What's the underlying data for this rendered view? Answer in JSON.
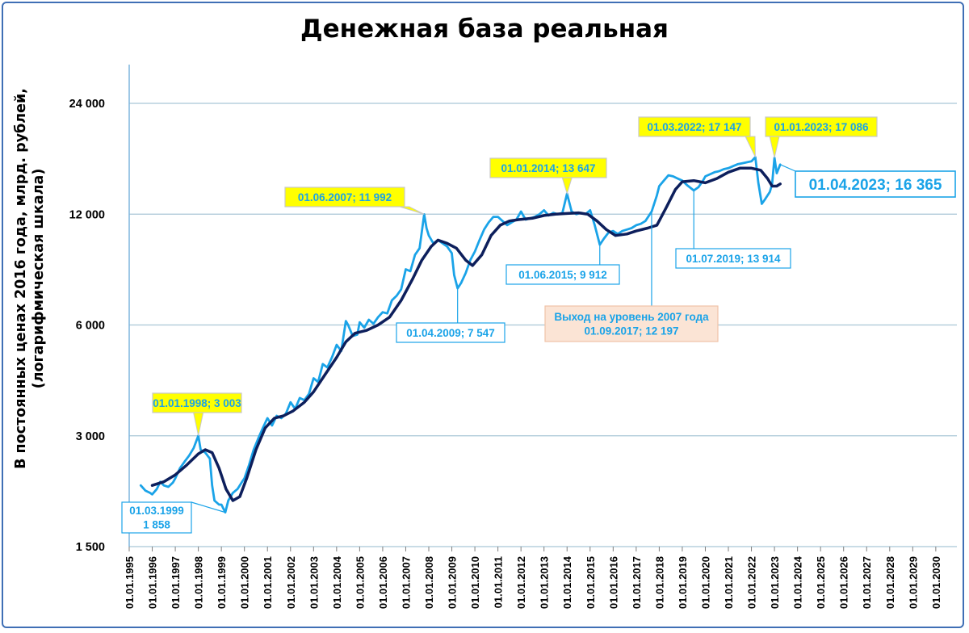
{
  "chart_data": {
    "type": "line",
    "title": "Денежная база реальная",
    "ylabel_lines": [
      "В постоянных ценах 2016 года, млрд. рублей,",
      "(логарифмическая шкала)"
    ],
    "y_scale": "log",
    "ylim": [
      1500,
      24000
    ],
    "y_ticks": [
      {
        "value": 1500,
        "label": "1 500"
      },
      {
        "value": 3000,
        "label": "3 000"
      },
      {
        "value": 6000,
        "label": "6 000"
      },
      {
        "value": 12000,
        "label": "12 000"
      },
      {
        "value": 24000,
        "label": "24 000"
      }
    ],
    "x_ticks": [
      "01.01.1995",
      "01.01.1996",
      "01.01.1997",
      "01.01.1998",
      "01.01.1999",
      "01.01.2000",
      "01.01.2001",
      "01.01.2002",
      "01.01.2003",
      "01.01.2004",
      "01.01.2005",
      "01.01.2006",
      "01.01.2007",
      "01.01.2008",
      "01.01.2009",
      "01.01.2010",
      "01.01.2011",
      "01.01.2012",
      "01.01.2013",
      "01.01.2014",
      "01.01.2015",
      "01.01.2016",
      "01.01.2017",
      "01.01.2018",
      "01.01.2019",
      "01.01.2020",
      "01.01.2021",
      "01.01.2022",
      "01.01.2023",
      "01.01.2024",
      "01.01.2025",
      "01.01.2026",
      "01.01.2027",
      "01.01.2028",
      "01.01.2029",
      "01.01.2030"
    ],
    "xlim": [
      1995.0,
      2030.0
    ],
    "grid": "horizontal",
    "colors": {
      "monthly": "#1aa3e8",
      "trend": "#0d1f5c",
      "label_yellow": "#ffff00",
      "label_peach": "#fbe4d5",
      "label_text": "#1aa3e8"
    },
    "series": [
      {
        "style": "monthly",
        "points": [
          [
            1995.5,
            2200
          ],
          [
            1995.7,
            2130
          ],
          [
            1995.9,
            2100
          ],
          [
            1996.0,
            2080
          ],
          [
            1996.2,
            2150
          ],
          [
            1996.35,
            2250
          ],
          [
            1996.5,
            2200
          ],
          [
            1996.7,
            2180
          ],
          [
            1996.9,
            2240
          ],
          [
            1997.0,
            2300
          ],
          [
            1997.2,
            2450
          ],
          [
            1997.4,
            2550
          ],
          [
            1997.6,
            2650
          ],
          [
            1997.8,
            2780
          ],
          [
            1998.0,
            3003
          ],
          [
            1998.1,
            2750
          ],
          [
            1998.3,
            2700
          ],
          [
            1998.5,
            2600
          ],
          [
            1998.6,
            2200
          ],
          [
            1998.7,
            2000
          ],
          [
            1998.9,
            1950
          ],
          [
            1999.0,
            1950
          ],
          [
            1999.17,
            1858
          ],
          [
            1999.3,
            2000
          ],
          [
            1999.5,
            2100
          ],
          [
            1999.7,
            2150
          ],
          [
            1999.9,
            2250
          ],
          [
            2000.0,
            2300
          ],
          [
            2000.2,
            2500
          ],
          [
            2000.4,
            2750
          ],
          [
            2000.6,
            2950
          ],
          [
            2000.8,
            3150
          ],
          [
            2001.0,
            3350
          ],
          [
            2001.2,
            3200
          ],
          [
            2001.4,
            3400
          ],
          [
            2001.6,
            3350
          ],
          [
            2001.8,
            3450
          ],
          [
            2002.0,
            3700
          ],
          [
            2002.2,
            3550
          ],
          [
            2002.4,
            3800
          ],
          [
            2002.6,
            3750
          ],
          [
            2002.8,
            3900
          ],
          [
            2003.0,
            4300
          ],
          [
            2003.2,
            4200
          ],
          [
            2003.4,
            4700
          ],
          [
            2003.6,
            4600
          ],
          [
            2003.8,
            4900
          ],
          [
            2004.0,
            5300
          ],
          [
            2004.2,
            5100
          ],
          [
            2004.4,
            6150
          ],
          [
            2004.5,
            6000
          ],
          [
            2004.7,
            5600
          ],
          [
            2004.9,
            5650
          ],
          [
            2005.0,
            6100
          ],
          [
            2005.2,
            5900
          ],
          [
            2005.4,
            6200
          ],
          [
            2005.6,
            6050
          ],
          [
            2005.8,
            6300
          ],
          [
            2006.0,
            6500
          ],
          [
            2006.2,
            6450
          ],
          [
            2006.4,
            7000
          ],
          [
            2006.6,
            7200
          ],
          [
            2006.8,
            7500
          ],
          [
            2007.0,
            8500
          ],
          [
            2007.2,
            8400
          ],
          [
            2007.4,
            9300
          ],
          [
            2007.6,
            9700
          ],
          [
            2007.8,
            11992
          ],
          [
            2007.9,
            11000
          ],
          [
            2008.0,
            10500
          ],
          [
            2008.2,
            10000
          ],
          [
            2008.4,
            10200
          ],
          [
            2008.6,
            10000
          ],
          [
            2008.8,
            9800
          ],
          [
            2009.0,
            9400
          ],
          [
            2009.1,
            8200
          ],
          [
            2009.25,
            7547
          ],
          [
            2009.4,
            7800
          ],
          [
            2009.6,
            8300
          ],
          [
            2009.8,
            9000
          ],
          [
            2010.0,
            9500
          ],
          [
            2010.2,
            10200
          ],
          [
            2010.4,
            10900
          ],
          [
            2010.6,
            11400
          ],
          [
            2010.8,
            11800
          ],
          [
            2011.0,
            11800
          ],
          [
            2011.2,
            11500
          ],
          [
            2011.4,
            11200
          ],
          [
            2011.6,
            11400
          ],
          [
            2011.8,
            11600
          ],
          [
            2012.0,
            12200
          ],
          [
            2012.2,
            11600
          ],
          [
            2012.4,
            11700
          ],
          [
            2012.6,
            11800
          ],
          [
            2012.8,
            12000
          ],
          [
            2013.0,
            12300
          ],
          [
            2013.2,
            11900
          ],
          [
            2013.4,
            12100
          ],
          [
            2013.6,
            12000
          ],
          [
            2013.8,
            12100
          ],
          [
            2014.0,
            13647
          ],
          [
            2014.2,
            12200
          ],
          [
            2014.4,
            12000
          ],
          [
            2014.6,
            12100
          ],
          [
            2014.8,
            12000
          ],
          [
            2015.0,
            12300
          ],
          [
            2015.2,
            11200
          ],
          [
            2015.42,
            9912
          ],
          [
            2015.6,
            10300
          ],
          [
            2015.8,
            10700
          ],
          [
            2016.0,
            10800
          ],
          [
            2016.2,
            10600
          ],
          [
            2016.4,
            10800
          ],
          [
            2016.6,
            10900
          ],
          [
            2016.8,
            11000
          ],
          [
            2017.0,
            11200
          ],
          [
            2017.2,
            11300
          ],
          [
            2017.4,
            11500
          ],
          [
            2017.67,
            12197
          ],
          [
            2017.9,
            13500
          ],
          [
            2018.0,
            14300
          ],
          [
            2018.2,
            14800
          ],
          [
            2018.4,
            15300
          ],
          [
            2018.6,
            15200
          ],
          [
            2018.8,
            15000
          ],
          [
            2019.0,
            14800
          ],
          [
            2019.2,
            14400
          ],
          [
            2019.5,
            13914
          ],
          [
            2019.7,
            14200
          ],
          [
            2019.9,
            14800
          ],
          [
            2020.0,
            15200
          ],
          [
            2020.2,
            15400
          ],
          [
            2020.4,
            15600
          ],
          [
            2020.6,
            15700
          ],
          [
            2020.8,
            15900
          ],
          [
            2021.0,
            16000
          ],
          [
            2021.2,
            16200
          ],
          [
            2021.4,
            16400
          ],
          [
            2021.6,
            16500
          ],
          [
            2021.8,
            16600
          ],
          [
            2022.0,
            16700
          ],
          [
            2022.17,
            17147
          ],
          [
            2022.3,
            14600
          ],
          [
            2022.45,
            12800
          ],
          [
            2022.6,
            13200
          ],
          [
            2022.8,
            13800
          ],
          [
            2022.9,
            14500
          ],
          [
            2023.0,
            17086
          ],
          [
            2023.1,
            15500
          ],
          [
            2023.25,
            16365
          ]
        ]
      },
      {
        "style": "trend",
        "points": [
          [
            1996.0,
            2200
          ],
          [
            1996.5,
            2250
          ],
          [
            1997.0,
            2350
          ],
          [
            1997.5,
            2500
          ],
          [
            1998.0,
            2680
          ],
          [
            1998.3,
            2750
          ],
          [
            1998.6,
            2700
          ],
          [
            1998.9,
            2450
          ],
          [
            1999.2,
            2150
          ],
          [
            1999.5,
            2000
          ],
          [
            1999.8,
            2050
          ],
          [
            2000.1,
            2300
          ],
          [
            2000.5,
            2750
          ],
          [
            2000.9,
            3150
          ],
          [
            2001.3,
            3350
          ],
          [
            2001.7,
            3400
          ],
          [
            2002.1,
            3500
          ],
          [
            2002.6,
            3700
          ],
          [
            2003.0,
            3950
          ],
          [
            2003.5,
            4400
          ],
          [
            2004.0,
            4900
          ],
          [
            2004.4,
            5400
          ],
          [
            2004.8,
            5700
          ],
          [
            2005.3,
            5800
          ],
          [
            2005.8,
            6000
          ],
          [
            2006.3,
            6300
          ],
          [
            2006.8,
            7000
          ],
          [
            2007.3,
            8000
          ],
          [
            2007.7,
            9000
          ],
          [
            2008.1,
            9800
          ],
          [
            2008.4,
            10200
          ],
          [
            2008.8,
            10000
          ],
          [
            2009.2,
            9700
          ],
          [
            2009.6,
            9000
          ],
          [
            2009.9,
            8700
          ],
          [
            2010.3,
            9300
          ],
          [
            2010.7,
            10500
          ],
          [
            2011.1,
            11200
          ],
          [
            2011.5,
            11500
          ],
          [
            2011.9,
            11600
          ],
          [
            2012.5,
            11700
          ],
          [
            2013.0,
            11900
          ],
          [
            2013.5,
            12000
          ],
          [
            2014.0,
            12050
          ],
          [
            2014.5,
            12100
          ],
          [
            2014.9,
            12000
          ],
          [
            2015.3,
            11500
          ],
          [
            2015.7,
            10900
          ],
          [
            2016.1,
            10500
          ],
          [
            2016.6,
            10600
          ],
          [
            2017.0,
            10800
          ],
          [
            2017.5,
            11000
          ],
          [
            2017.9,
            11200
          ],
          [
            2018.3,
            12500
          ],
          [
            2018.7,
            14000
          ],
          [
            2019.0,
            14700
          ],
          [
            2019.5,
            14800
          ],
          [
            2020.0,
            14600
          ],
          [
            2020.5,
            15000
          ],
          [
            2021.0,
            15600
          ],
          [
            2021.5,
            16000
          ],
          [
            2022.0,
            16000
          ],
          [
            2022.4,
            15800
          ],
          [
            2022.7,
            15000
          ],
          [
            2022.9,
            14300
          ],
          [
            2023.1,
            14300
          ],
          [
            2023.25,
            14500
          ]
        ]
      }
    ],
    "annotations": [
      {
        "text": [
          "01.01.1998; 3 003"
        ],
        "style": "yellow",
        "x": 1998.0,
        "y": 3003
      },
      {
        "text": [
          "01.03.1999",
          "1 858"
        ],
        "style": "white",
        "x": 1999.17,
        "y": 1858
      },
      {
        "text": [
          "01.06.2007; 11 992"
        ],
        "style": "yellow",
        "x": 2007.8,
        "y": 11992
      },
      {
        "text": [
          "01.04.2009; 7 547"
        ],
        "style": "white",
        "x": 2009.25,
        "y": 7547
      },
      {
        "text": [
          "01.01.2014; 13 647"
        ],
        "style": "yellow",
        "x": 2014.0,
        "y": 13647
      },
      {
        "text": [
          "01.06.2015; 9 912"
        ],
        "style": "white",
        "x": 2015.42,
        "y": 9912
      },
      {
        "text": [
          "Выход на уровень 2007 года",
          "01.09.2017; 12 197"
        ],
        "style": "peach",
        "x": 2017.67,
        "y": 12197
      },
      {
        "text": [
          "01.07.2019; 13 914"
        ],
        "style": "white",
        "x": 2019.5,
        "y": 13914
      },
      {
        "text": [
          "01.03.2022; 17 147"
        ],
        "style": "yellow",
        "x": 2022.17,
        "y": 17147
      },
      {
        "text": [
          "01.01.2023; 17 086"
        ],
        "style": "yellow",
        "x": 2023.0,
        "y": 17086
      },
      {
        "text": [
          "01.04.2023;  16 365"
        ],
        "style": "big",
        "x": 2023.25,
        "y": 16365
      }
    ]
  }
}
